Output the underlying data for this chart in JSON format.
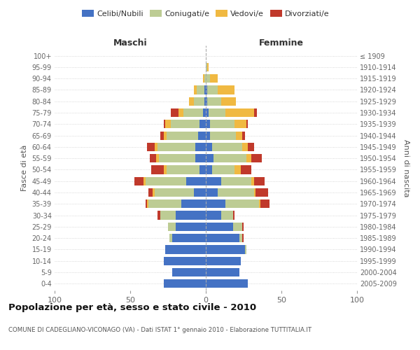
{
  "age_groups": [
    "0-4",
    "5-9",
    "10-14",
    "15-19",
    "20-24",
    "25-29",
    "30-34",
    "35-39",
    "40-44",
    "45-49",
    "50-54",
    "55-59",
    "60-64",
    "65-69",
    "70-74",
    "75-79",
    "80-84",
    "85-89",
    "90-94",
    "95-99",
    "100+"
  ],
  "birth_years": [
    "2005-2009",
    "2000-2004",
    "1995-1999",
    "1990-1994",
    "1985-1989",
    "1980-1984",
    "1975-1979",
    "1970-1974",
    "1965-1969",
    "1960-1964",
    "1955-1959",
    "1950-1954",
    "1945-1949",
    "1940-1944",
    "1935-1939",
    "1930-1934",
    "1925-1929",
    "1920-1924",
    "1915-1919",
    "1910-1914",
    "≤ 1909"
  ],
  "male": {
    "celibi": [
      28,
      22,
      28,
      27,
      22,
      20,
      20,
      16,
      8,
      13,
      4,
      7,
      7,
      5,
      4,
      2,
      1,
      1,
      0,
      0,
      0
    ],
    "coniugati": [
      0,
      0,
      0,
      0,
      2,
      5,
      10,
      22,
      26,
      27,
      22,
      24,
      25,
      21,
      19,
      13,
      7,
      5,
      1,
      0,
      0
    ],
    "vedovi": [
      0,
      0,
      0,
      0,
      0,
      0,
      0,
      1,
      1,
      1,
      2,
      2,
      2,
      2,
      4,
      3,
      3,
      2,
      1,
      0,
      0
    ],
    "divorziati": [
      0,
      0,
      0,
      0,
      0,
      0,
      2,
      1,
      3,
      6,
      8,
      4,
      5,
      2,
      1,
      5,
      0,
      0,
      0,
      0,
      0
    ]
  },
  "female": {
    "nubili": [
      28,
      22,
      23,
      26,
      22,
      18,
      10,
      13,
      8,
      10,
      4,
      5,
      4,
      3,
      3,
      2,
      1,
      1,
      0,
      0,
      0
    ],
    "coniugate": [
      0,
      0,
      0,
      1,
      2,
      6,
      8,
      22,
      24,
      20,
      15,
      22,
      20,
      17,
      16,
      11,
      9,
      7,
      3,
      1,
      0
    ],
    "vedove": [
      0,
      0,
      0,
      0,
      0,
      0,
      0,
      1,
      1,
      2,
      4,
      3,
      4,
      4,
      8,
      19,
      10,
      11,
      5,
      1,
      0
    ],
    "divorziate": [
      0,
      0,
      0,
      0,
      1,
      1,
      1,
      6,
      8,
      7,
      7,
      7,
      4,
      2,
      1,
      2,
      0,
      0,
      0,
      0,
      0
    ]
  },
  "colors": {
    "celibi_nubili": "#4472C4",
    "coniugati": "#BDCC94",
    "vedovi": "#F0B942",
    "divorziati": "#C0392B"
  },
  "xlim": 100,
  "title": "Popolazione per età, sesso e stato civile - 2010",
  "subtitle": "COMUNE DI CADEGLIANO-VICONAGO (VA) - Dati ISTAT 1° gennaio 2010 - Elaborazione TUTTITALIA.IT",
  "ylabel_left": "Fasce di età",
  "ylabel_right": "Anni di nascita",
  "xlabel_male": "Maschi",
  "xlabel_female": "Femmine",
  "legend_labels": [
    "Celibi/Nubili",
    "Coniugati/e",
    "Vedovi/e",
    "Divorziati/e"
  ],
  "bg_color": "#FFFFFF",
  "grid_color": "#CCCCCC"
}
